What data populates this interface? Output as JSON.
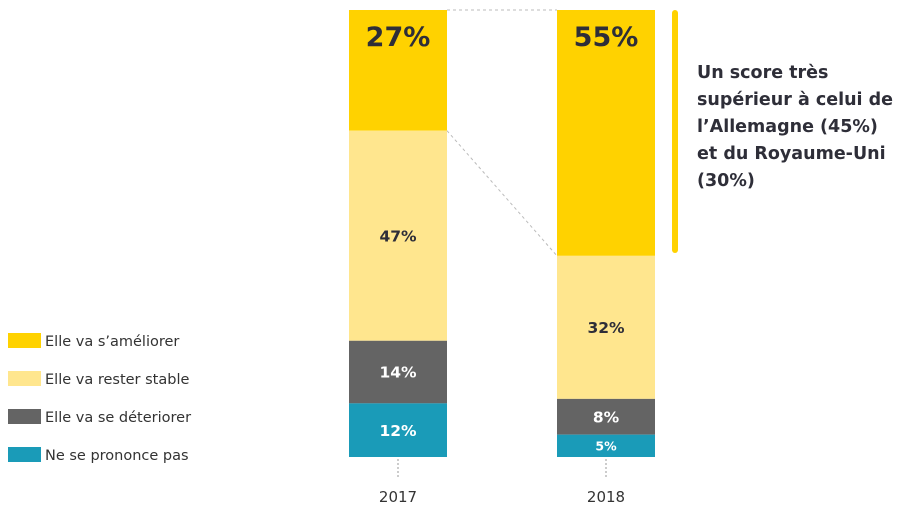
{
  "chart_data": {
    "type": "bar",
    "stacked": true,
    "categories": [
      "2017",
      "2018"
    ],
    "series": [
      {
        "name": "Elle va s’améliorer",
        "color": "#ffd200",
        "values": [
          27,
          55
        ]
      },
      {
        "name": "Elle va rester stable",
        "color": "#ffe68e",
        "values": [
          47,
          32
        ]
      },
      {
        "name": "Elle va se déteriorer",
        "color": "#646464",
        "values": [
          14,
          8
        ]
      },
      {
        "name": "Ne se prononce pas",
        "color": "#1a9bb8",
        "values": [
          12,
          5
        ]
      }
    ],
    "labels": [
      [
        "27%",
        "55%"
      ],
      [
        "47%",
        "32%"
      ],
      [
        "14%",
        "8%"
      ],
      [
        "12%",
        "5%"
      ]
    ],
    "legend_position": "left"
  },
  "callout": {
    "lines": [
      "Un score très",
      "supérieur à celui de",
      "l’Allemagne (45%)",
      "et du Royaume-Uni",
      "(30%)"
    ],
    "color": "#ffd200"
  }
}
